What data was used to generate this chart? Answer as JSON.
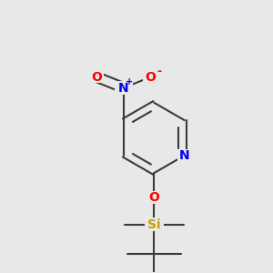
{
  "background_color": "#e8e8e8",
  "bond_color": "#3a3a3a",
  "bond_width": 1.5,
  "colors": {
    "N": "#0000ee",
    "O": "#ff0000",
    "Si": "#c8a000",
    "C": "#3a3a3a"
  },
  "figsize": [
    3.0,
    3.0
  ],
  "dpi": 100
}
